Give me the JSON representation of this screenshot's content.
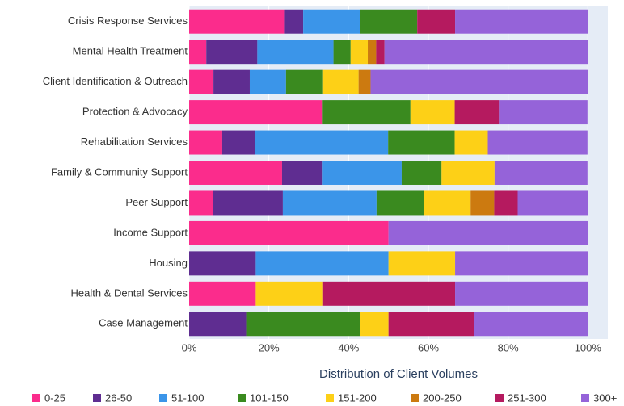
{
  "chart_data": {
    "type": "stacked_bar_horizontal",
    "x_label": "Distribution of Client Volumes",
    "categories": [
      "Crisis Response Services",
      "Mental Health Treatment",
      "Client Identification & Outreach",
      "Protection & Advocacy",
      "Rehabilitation Services",
      "Family & Community Support",
      "Peer Support",
      "Income Support",
      "Housing",
      "Health & Dental Services",
      "Case Management"
    ],
    "series": [
      {
        "name": "0-25",
        "color": "#fb2c8c",
        "values": [
          23.8,
          4.3,
          6.1,
          33.3,
          8.3,
          23.3,
          5.9,
          50,
          0,
          16.7,
          0
        ]
      },
      {
        "name": "26-50",
        "color": "#5f2d91",
        "values": [
          4.8,
          12.8,
          9.1,
          0,
          8.3,
          10,
          17.6,
          0,
          16.7,
          0,
          14.3
        ]
      },
      {
        "name": "51-100",
        "color": "#3b95e9",
        "values": [
          14.3,
          19.1,
          9.1,
          0,
          33.3,
          20,
          23.5,
          0,
          33.3,
          0,
          0
        ]
      },
      {
        "name": "101-150",
        "color": "#3a8a1f",
        "values": [
          14.3,
          4.3,
          9.1,
          22.2,
          16.7,
          10,
          11.8,
          0,
          0,
          0,
          28.6
        ]
      },
      {
        "name": "151-200",
        "color": "#fdd017",
        "values": [
          0,
          4.3,
          9.1,
          11.1,
          8.3,
          13.3,
          11.8,
          0,
          16.7,
          16.7,
          7.1
        ]
      },
      {
        "name": "200-250",
        "color": "#cc7a10",
        "values": [
          0,
          2.1,
          3.0,
          0,
          0,
          0,
          5.9,
          0,
          0,
          0,
          0
        ]
      },
      {
        "name": "251-300",
        "color": "#b51a5f",
        "values": [
          9.5,
          2.1,
          0,
          11.1,
          0,
          0,
          5.9,
          0,
          0,
          33.3,
          21.4
        ]
      },
      {
        "name": "300+",
        "color": "#9563d9",
        "values": [
          33.3,
          51.1,
          54.5,
          22.2,
          25,
          23.3,
          17.6,
          50,
          33.3,
          33.3,
          28.6
        ]
      }
    ],
    "xlim": [
      0,
      105
    ],
    "xticks": [
      {
        "value": 0,
        "label": "0%"
      },
      {
        "value": 20,
        "label": "20%"
      },
      {
        "value": 40,
        "label": "40%"
      },
      {
        "value": 60,
        "label": "60%"
      },
      {
        "value": 80,
        "label": "80%"
      },
      {
        "value": 100,
        "label": "100%"
      }
    ],
    "grid": true,
    "legend": "bottom"
  }
}
